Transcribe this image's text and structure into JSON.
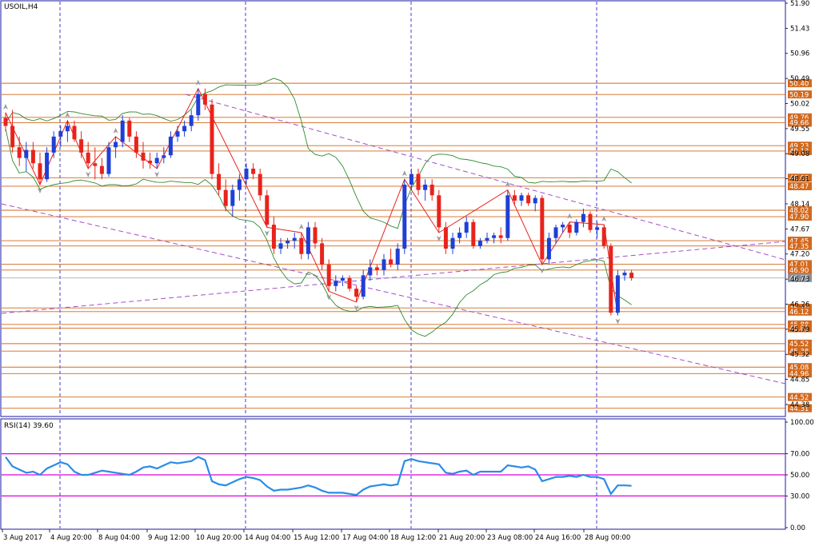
{
  "chart_title": "USOIL,H4",
  "indicator_title": "RSI(14) 39.60",
  "colors": {
    "bull": "#1f3fd6",
    "bear": "#e8231c",
    "level_line": "#d2691e",
    "band": "#2e8b2e",
    "trend": "#a64dc9",
    "rsi_line": "#2b8ce6",
    "rsi_level": "#e000e0",
    "grid_v": "#1010c0",
    "axis": "#1a1aa6"
  },
  "price_axis_ticks": [
    "51.90",
    "51.43",
    "50.96",
    "50.49",
    "50.02",
    "49.55",
    "49.08",
    "48.61",
    "48.14",
    "47.67",
    "47.20",
    "46.73",
    "46.26",
    "45.79",
    "45.32",
    "44.85",
    "44.38"
  ],
  "price_levels": [
    "50.40",
    "50.19",
    "49.76",
    "49.66",
    "49.23",
    "49.13",
    "48.63",
    "48.47",
    "48.02",
    "47.90",
    "47.45",
    "47.35",
    "47.01",
    "46.90",
    "46.19",
    "46.12",
    "45.88",
    "45.81",
    "45.52",
    "45.38",
    "45.08",
    "44.96",
    "44.52",
    "44.31"
  ],
  "current_price": "46.75",
  "rsi_axis_ticks": [
    "100.00",
    "70.00",
    "50.00",
    "30.00",
    "0.00"
  ],
  "rsi_levels": [
    70,
    50,
    30
  ],
  "time_labels": [
    "3 Aug 2017",
    "4 Aug 20:00",
    "8 Aug 04:00",
    "9 Aug 12:00",
    "10 Aug 20:00",
    "14 Aug 04:00",
    "15 Aug 12:00",
    "17 Aug 04:00",
    "18 Aug 12:00",
    "21 Aug 20:00",
    "23 Aug 08:00",
    "24 Aug 16:00",
    "28 Aug 00:00"
  ],
  "chart_data": {
    "type": "candlestick",
    "symbol": "USOIL",
    "timeframe": "H4",
    "ylim": [
      44.2,
      51.9
    ],
    "candles_ohlc": [
      [
        49.75,
        49.85,
        49.5,
        49.6
      ],
      [
        49.6,
        49.9,
        49.1,
        49.2
      ],
      [
        49.2,
        49.4,
        48.85,
        49.0
      ],
      [
        49.0,
        49.3,
        48.75,
        49.15
      ],
      [
        49.15,
        49.3,
        48.8,
        48.9
      ],
      [
        48.9,
        49.1,
        48.5,
        48.6
      ],
      [
        48.6,
        49.2,
        48.55,
        49.1
      ],
      [
        49.1,
        49.5,
        49.0,
        49.4
      ],
      [
        49.4,
        49.6,
        49.2,
        49.5
      ],
      [
        49.5,
        49.7,
        49.3,
        49.6
      ],
      [
        49.6,
        49.7,
        49.3,
        49.35
      ],
      [
        49.35,
        49.5,
        49.0,
        49.1
      ],
      [
        49.1,
        49.3,
        48.8,
        48.9
      ],
      [
        48.9,
        49.2,
        48.6,
        48.85
      ],
      [
        48.85,
        49.0,
        48.6,
        48.7
      ],
      [
        48.7,
        49.3,
        48.65,
        49.2
      ],
      [
        49.2,
        49.4,
        49.0,
        49.3
      ],
      [
        49.3,
        49.8,
        49.2,
        49.7
      ],
      [
        49.7,
        49.75,
        49.3,
        49.4
      ],
      [
        49.4,
        49.5,
        49.0,
        49.1
      ],
      [
        49.1,
        49.3,
        48.8,
        48.95
      ],
      [
        48.95,
        49.1,
        48.8,
        48.9
      ],
      [
        48.9,
        49.1,
        48.8,
        49.0
      ],
      [
        49.0,
        49.2,
        48.9,
        49.05
      ],
      [
        49.05,
        49.5,
        49.0,
        49.4
      ],
      [
        49.4,
        49.6,
        49.3,
        49.5
      ],
      [
        49.5,
        49.7,
        49.4,
        49.6
      ],
      [
        49.6,
        49.9,
        49.5,
        49.8
      ],
      [
        49.8,
        50.3,
        49.7,
        50.2
      ],
      [
        50.2,
        50.3,
        49.9,
        50.0
      ],
      [
        50.0,
        50.1,
        48.6,
        48.7
      ],
      [
        48.7,
        48.9,
        48.3,
        48.4
      ],
      [
        48.4,
        48.6,
        48.0,
        48.1
      ],
      [
        48.1,
        48.5,
        47.9,
        48.4
      ],
      [
        48.4,
        48.7,
        48.2,
        48.6
      ],
      [
        48.6,
        48.9,
        48.5,
        48.8
      ],
      [
        48.8,
        48.9,
        48.6,
        48.7
      ],
      [
        48.7,
        48.8,
        48.2,
        48.3
      ],
      [
        48.3,
        48.4,
        47.7,
        47.75
      ],
      [
        47.75,
        47.9,
        47.2,
        47.3
      ],
      [
        47.3,
        47.5,
        47.2,
        47.4
      ],
      [
        47.4,
        47.5,
        47.3,
        47.45
      ],
      [
        47.45,
        47.6,
        47.3,
        47.5
      ],
      [
        47.5,
        47.6,
        47.1,
        47.2
      ],
      [
        47.2,
        47.8,
        47.1,
        47.7
      ],
      [
        47.7,
        47.8,
        47.3,
        47.4
      ],
      [
        47.4,
        47.5,
        46.9,
        47.0
      ],
      [
        47.0,
        47.1,
        46.5,
        46.6
      ],
      [
        46.6,
        46.8,
        46.5,
        46.7
      ],
      [
        46.7,
        46.8,
        46.6,
        46.75
      ],
      [
        46.75,
        46.8,
        46.5,
        46.55
      ],
      [
        46.55,
        46.6,
        46.3,
        46.4
      ],
      [
        46.4,
        46.9,
        46.35,
        46.8
      ],
      [
        46.8,
        47.1,
        46.7,
        46.95
      ],
      [
        46.95,
        47.0,
        46.8,
        46.9
      ],
      [
        46.9,
        47.2,
        46.8,
        47.1
      ],
      [
        47.1,
        47.3,
        46.95,
        47.0
      ],
      [
        47.0,
        47.4,
        46.9,
        47.3
      ],
      [
        47.3,
        48.6,
        47.2,
        48.5
      ],
      [
        48.5,
        48.8,
        48.4,
        48.7
      ],
      [
        48.7,
        48.8,
        48.3,
        48.4
      ],
      [
        48.4,
        48.6,
        48.2,
        48.5
      ],
      [
        48.5,
        48.6,
        48.2,
        48.3
      ],
      [
        48.3,
        48.4,
        47.6,
        47.7
      ],
      [
        47.7,
        47.8,
        47.2,
        47.3
      ],
      [
        47.3,
        47.6,
        47.2,
        47.5
      ],
      [
        47.5,
        47.7,
        47.4,
        47.6
      ],
      [
        47.6,
        47.9,
        47.5,
        47.8
      ],
      [
        47.8,
        47.85,
        47.3,
        47.35
      ],
      [
        47.35,
        47.5,
        47.3,
        47.45
      ],
      [
        47.45,
        47.6,
        47.4,
        47.5
      ],
      [
        47.5,
        47.6,
        47.4,
        47.55
      ],
      [
        47.55,
        47.7,
        47.4,
        47.5
      ],
      [
        47.5,
        48.4,
        47.45,
        48.3
      ],
      [
        48.3,
        48.4,
        48.1,
        48.2
      ],
      [
        48.2,
        48.35,
        48.1,
        48.3
      ],
      [
        48.3,
        48.35,
        48.1,
        48.15
      ],
      [
        48.15,
        48.3,
        48.0,
        48.25
      ],
      [
        48.25,
        48.3,
        47.0,
        47.1
      ],
      [
        47.1,
        47.6,
        47.0,
        47.5
      ],
      [
        47.5,
        47.75,
        47.4,
        47.7
      ],
      [
        47.7,
        47.8,
        47.6,
        47.75
      ],
      [
        47.75,
        47.8,
        47.5,
        47.6
      ],
      [
        47.6,
        47.85,
        47.55,
        47.8
      ],
      [
        47.8,
        48.05,
        47.7,
        47.95
      ],
      [
        47.95,
        48.0,
        47.6,
        47.65
      ],
      [
        47.65,
        47.8,
        47.5,
        47.7
      ],
      [
        47.7,
        47.75,
        47.3,
        47.35
      ],
      [
        47.35,
        47.4,
        46.05,
        46.1
      ],
      [
        46.1,
        46.9,
        46.05,
        46.8
      ],
      [
        46.8,
        46.9,
        46.7,
        46.85
      ],
      [
        46.85,
        46.9,
        46.7,
        46.75
      ]
    ],
    "rsi_values": [
      67,
      58,
      55,
      52,
      53,
      50,
      56,
      59,
      62,
      60,
      53,
      50,
      50,
      52,
      54,
      53,
      52,
      51,
      50,
      53,
      57,
      58,
      56,
      59,
      62,
      61,
      62,
      63,
      67,
      64,
      44,
      41,
      40,
      43,
      46,
      48,
      47,
      45,
      39,
      35,
      36,
      36,
      37,
      38,
      40,
      38,
      35,
      33,
      33,
      33,
      32,
      31,
      36,
      39,
      40,
      41,
      40,
      41,
      63,
      65,
      63,
      62,
      61,
      60,
      52,
      51,
      53,
      54,
      50,
      53,
      53,
      53,
      53,
      59,
      58,
      57,
      58,
      55,
      44,
      46,
      48,
      48,
      49,
      48,
      50,
      48,
      48,
      46,
      32,
      40,
      40,
      39.6
    ]
  }
}
